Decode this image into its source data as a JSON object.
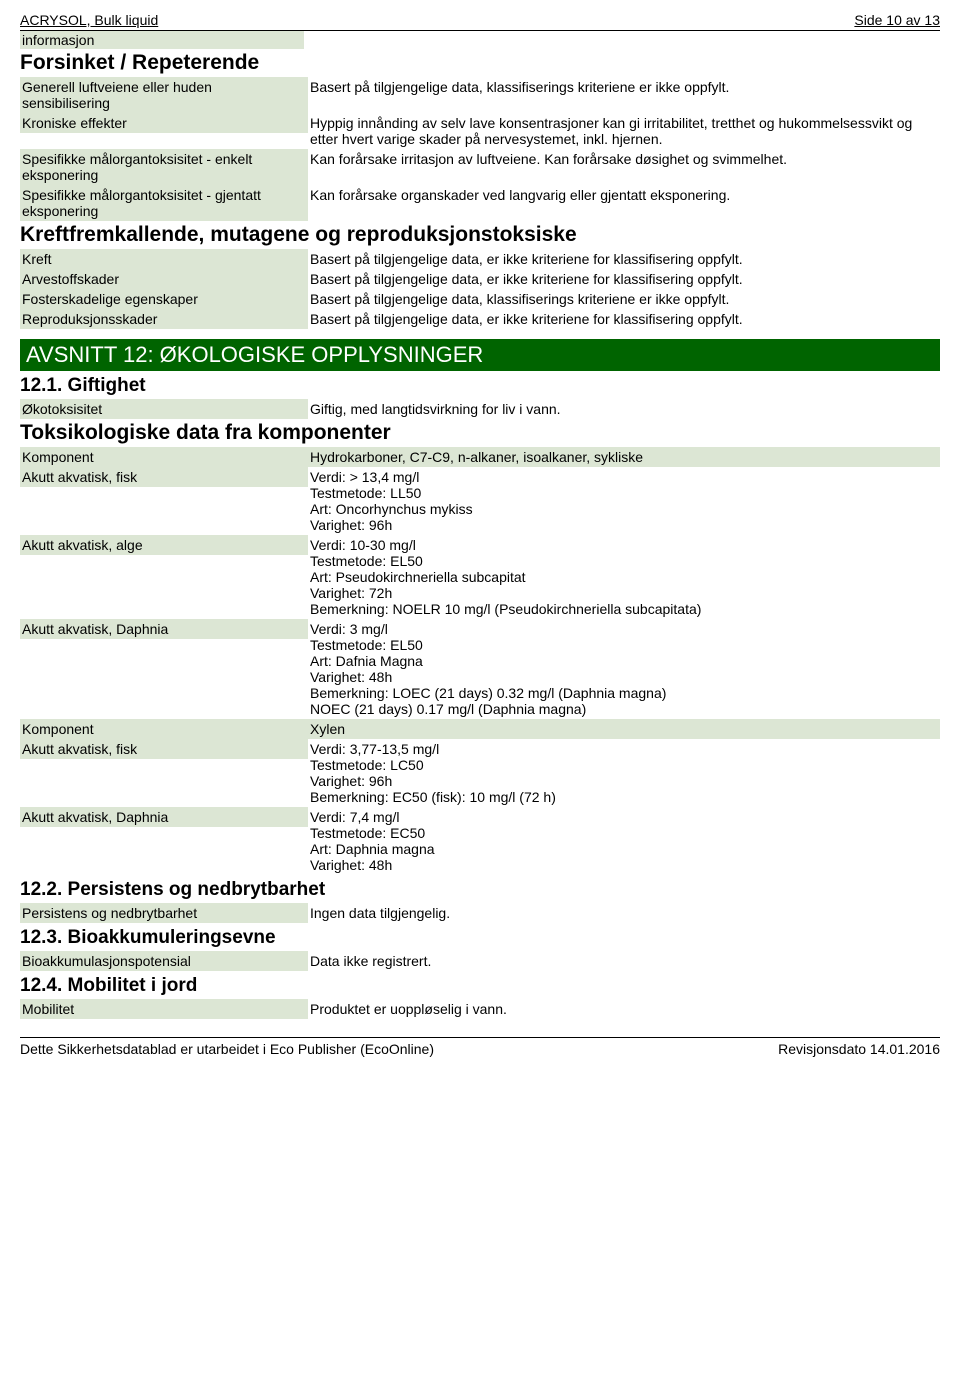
{
  "header": {
    "product": "ACRYSOL, Bulk liquid",
    "pageinfo": "Side 10 av 13"
  },
  "forsinket": {
    "info_label": "informasjon",
    "title": "Forsinket / Repeterende",
    "r1_label": "Generell luftveiene eller huden sensibilisering",
    "r1_value": "Basert på tilgjengelige data, klassifiserings kriteriene er ikke oppfylt.",
    "r2_label": "Kroniske effekter",
    "r2_value": "Hyppig innånding av selv lave konsentrasjoner kan gi irritabilitet, tretthet og hukommelsessvikt og etter hvert varige skader på nervesystemet, inkl. hjernen.",
    "r3_label": "Spesifikke målorgantoksisitet - enkelt eksponering",
    "r3_value": "Kan forårsake irritasjon av luftveiene. Kan forårsake døsighet og svimmelhet.",
    "r4_label": "Spesifikke målorgantoksisitet - gjentatt eksponering",
    "r4_value": "Kan forårsake organskader ved langvarig eller gjentatt eksponering."
  },
  "kreft": {
    "title": "Kreftfremkallende, mutagene og reproduksjonstoksiske",
    "r1_label": "Kreft",
    "r1_value": "Basert på tilgjengelige data, er ikke kriteriene for klassifisering oppfylt.",
    "r2_label": "Arvestoffskader",
    "r2_value": "Basert på tilgjengelige data, er ikke kriteriene for klassifisering oppfylt.",
    "r3_label": "Fosterskadelige egenskaper",
    "r3_value": "Basert på tilgjengelige data, klassifiserings kriteriene er ikke oppfylt.",
    "r4_label": "Reproduksjonsskader",
    "r4_value": "Basert på tilgjengelige data, er ikke kriteriene for klassifisering oppfylt."
  },
  "avsnitt12": {
    "banner": "AVSNITT 12: ØKOLOGISKE OPPLYSNINGER",
    "s1_title": "12.1. Giftighet",
    "s1_r1_label": "Økotoksisitet",
    "s1_r1_value": "Giftig, med langtidsvirkning for liv i vann.",
    "tox_title": "Toksikologiske data fra komponenter",
    "r1_label": "Komponent",
    "r1_value": "Hydrokarboner, C7-C9, n-alkaner, isoalkaner, sykliske",
    "r2_label": "Akutt akvatisk, fisk",
    "r2_v1": "Verdi: > 13,4 mg/l",
    "r2_v2": "Testmetode: LL50",
    "r2_v3": "Art: Oncorhynchus mykiss",
    "r2_v4": "Varighet: 96h",
    "r3_label": "Akutt akvatisk, alge",
    "r3_v1": "Verdi: 10-30 mg/l",
    "r3_v2": "Testmetode: EL50",
    "r3_v3": "Art: Pseudokirchneriella subcapitat",
    "r3_v4": "Varighet: 72h",
    "r3_v5": "Bemerkning: NOELR 10 mg/l (Pseudokirchneriella subcapitata)",
    "r4_label": "Akutt akvatisk, Daphnia",
    "r4_v1": "Verdi: 3 mg/l",
    "r4_v2": "Testmetode: EL50",
    "r4_v3": "Art: Dafnia Magna",
    "r4_v4": "Varighet: 48h",
    "r4_v5": "Bemerkning: LOEC (21 days) 0.32 mg/l (Daphnia magna)",
    "r4_v6": "NOEC (21 days) 0.17 mg/l (Daphnia magna)",
    "r5_label": "Komponent",
    "r5_value": "Xylen",
    "r6_label": "Akutt akvatisk, fisk",
    "r6_v1": "Verdi: 3,77-13,5 mg/l",
    "r6_v2": "Testmetode: LC50",
    "r6_v3": "Varighet: 96h",
    "r6_v4": "Bemerkning: EC50 (fisk): 10 mg/l (72 h)",
    "r7_label": "Akutt akvatisk, Daphnia",
    "r7_v1": "Verdi: 7,4 mg/l",
    "r7_v2": "Testmetode: EC50",
    "r7_v3": "Art: Daphnia magna",
    "r7_v4": "Varighet: 48h",
    "s2_title": "12.2. Persistens og nedbrytbarhet",
    "s2_r1_label": "Persistens og nedbrytbarhet",
    "s2_r1_value": "Ingen data tilgjengelig.",
    "s3_title": "12.3. Bioakkumuleringsevne",
    "s3_r1_label": "Bioakkumulasjonspotensial",
    "s3_r1_value": "Data ikke registrert.",
    "s4_title": "12.4. Mobilitet i jord",
    "s4_r1_label": "Mobilitet",
    "s4_r1_value": "Produktet er uoppløselig i vann."
  },
  "footer": {
    "left": "Dette Sikkerhetsdatablad er utarbeidet i Eco Publisher (EcoOnline)",
    "right": "Revisjonsdato 14.01.2016"
  }
}
